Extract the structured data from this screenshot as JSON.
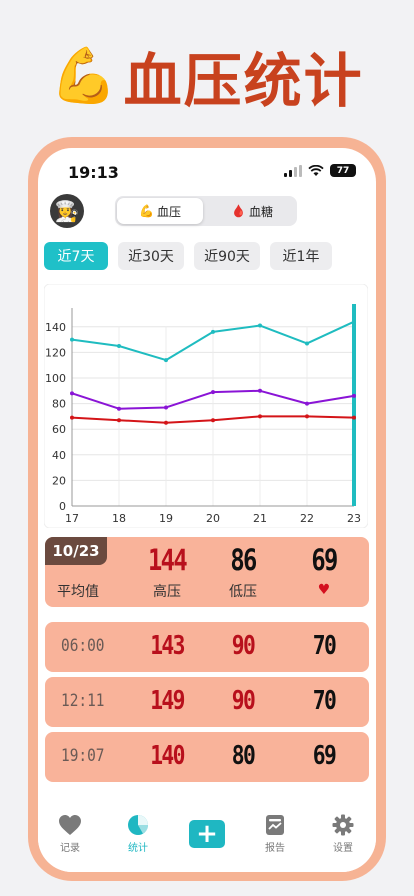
{
  "hero": {
    "emoji": "💪",
    "title": "血压统计"
  },
  "status": {
    "time": "19:13",
    "battery": "77"
  },
  "avatar": {
    "emoji": "👩‍🍳"
  },
  "segments": [
    {
      "icon": "💪",
      "label": "血压",
      "active": true
    },
    {
      "icon": "🩸",
      "label": "血糖",
      "active": false
    }
  ],
  "ranges": [
    {
      "label": "近7天",
      "active": true
    },
    {
      "label": "近30天",
      "active": false
    },
    {
      "label": "近90天",
      "active": false
    },
    {
      "label": "近1年",
      "active": false
    }
  ],
  "chart_data": {
    "type": "line",
    "x": [
      "17",
      "18",
      "19",
      "20",
      "21",
      "22",
      "23"
    ],
    "series": [
      {
        "name": "高压",
        "color": "#1fbcc0",
        "values": [
          130,
          125,
          114,
          136,
          141,
          127,
          144
        ]
      },
      {
        "name": "低压",
        "color": "#8a14d6",
        "values": [
          88,
          76,
          77,
          89,
          90,
          80,
          86
        ]
      },
      {
        "name": "心率",
        "color": "#d41418",
        "values": [
          69,
          67,
          65,
          67,
          70,
          70,
          69
        ]
      }
    ],
    "yticks": [
      0,
      20,
      40,
      60,
      80,
      100,
      120,
      140
    ],
    "ylim": [
      0,
      150
    ],
    "grid": true,
    "legend": "top-left",
    "highlight_x": "23"
  },
  "average": {
    "date": "10/23",
    "label": "平均值",
    "systolic": "144",
    "systolic_label": "高压",
    "diastolic": "86",
    "diastolic_label": "低压",
    "heart_rate": "69",
    "heart_icon": "♥"
  },
  "records": [
    {
      "time": "06:00",
      "systolic": "143",
      "diastolic": "90",
      "heart_rate": "70"
    },
    {
      "time": "12:11",
      "systolic": "149",
      "diastolic": "90",
      "heart_rate": "70"
    },
    {
      "time": "19:07",
      "systolic": "140",
      "diastolic": "80",
      "heart_rate": "69"
    }
  ],
  "tabs": [
    {
      "label": "记录",
      "icon": "heart-icon",
      "active": false
    },
    {
      "label": "统计",
      "icon": "pie-chart-icon",
      "active": true
    },
    {
      "label": "",
      "icon": "plus-icon",
      "active": false
    },
    {
      "label": "报告",
      "icon": "report-icon",
      "active": false
    },
    {
      "label": "设置",
      "icon": "gear-icon",
      "active": false
    }
  ],
  "colors": {
    "accent": "#1fb7c2",
    "frame": "#f6b394",
    "card": "#f9b39a",
    "hero_title": "#c8421e"
  }
}
